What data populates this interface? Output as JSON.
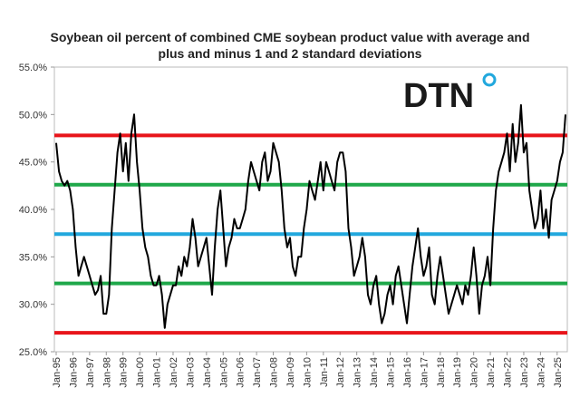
{
  "chart_data": {
    "type": "line",
    "title": "Soybean oil percent of combined CME soybean product value with average and plus and minus 1 and 2 standard deviations",
    "logo": "DTN",
    "ylim": [
      25,
      55
    ],
    "yticks": [
      {
        "value": 25,
        "label": "25.0%"
      },
      {
        "value": 30,
        "label": "30.0%"
      },
      {
        "value": 35,
        "label": "35.0%"
      },
      {
        "value": 40,
        "label": "40.0%"
      },
      {
        "value": 45,
        "label": "45.0%"
      },
      {
        "value": 50,
        "label": "50.0%"
      },
      {
        "value": 55,
        "label": "55.0%"
      }
    ],
    "xlim": [
      "Jan-95",
      "Jul-25"
    ],
    "xticks": [
      "Jan-95",
      "Jan-96",
      "Jan-97",
      "Jan-98",
      "Jan-99",
      "Jan-00",
      "Jan-01",
      "Jan-02",
      "Jan-03",
      "Jan-04",
      "Jan-05",
      "Jan-06",
      "Jan-07",
      "Jan-08",
      "Jan-09",
      "Jan-10",
      "Jan-11",
      "Jan-12",
      "Jan-13",
      "Jan-14",
      "Jan-15",
      "Jan-16",
      "Jan-17",
      "Jan-18",
      "Jan-19",
      "Jan-20",
      "Jan-21",
      "Jan-22",
      "Jan-23",
      "Jan-24",
      "Jan-25"
    ],
    "reference_lines": [
      {
        "value": 47.8,
        "color": "#e8141a"
      },
      {
        "value": 42.6,
        "color": "#1fa84a"
      },
      {
        "value": 37.4,
        "color": "#22a8dd"
      },
      {
        "value": 32.2,
        "color": "#1fa84a"
      },
      {
        "value": 27.0,
        "color": "#e8141a"
      }
    ],
    "x": [
      "Jan-95",
      "Mar-95",
      "May-95",
      "Jul-95",
      "Sep-95",
      "Nov-95",
      "Jan-96",
      "Mar-96",
      "May-96",
      "Jul-96",
      "Sep-96",
      "Nov-96",
      "Jan-97",
      "Mar-97",
      "May-97",
      "Jul-97",
      "Sep-97",
      "Nov-97",
      "Jan-98",
      "Mar-98",
      "May-98",
      "Jul-98",
      "Sep-98",
      "Nov-98",
      "Jan-99",
      "Mar-99",
      "May-99",
      "Jul-99",
      "Sep-99",
      "Nov-99",
      "Jan-00",
      "Mar-00",
      "May-00",
      "Jul-00",
      "Sep-00",
      "Nov-00",
      "Jan-01",
      "Mar-01",
      "May-01",
      "Jul-01",
      "Sep-01",
      "Nov-01",
      "Jan-02",
      "Mar-02",
      "May-02",
      "Jul-02",
      "Sep-02",
      "Nov-02",
      "Jan-03",
      "Mar-03",
      "May-03",
      "Jul-03",
      "Sep-03",
      "Nov-03",
      "Jan-04",
      "Mar-04",
      "May-04",
      "Jul-04",
      "Sep-04",
      "Nov-04",
      "Jan-05",
      "Mar-05",
      "May-05",
      "Jul-05",
      "Sep-05",
      "Nov-05",
      "Jan-06",
      "Mar-06",
      "May-06",
      "Jul-06",
      "Sep-06",
      "Nov-06",
      "Jan-07",
      "Mar-07",
      "May-07",
      "Jul-07",
      "Sep-07",
      "Nov-07",
      "Jan-08",
      "Mar-08",
      "May-08",
      "Jul-08",
      "Sep-08",
      "Nov-08",
      "Jan-09",
      "Mar-09",
      "May-09",
      "Jul-09",
      "Sep-09",
      "Nov-09",
      "Jan-10",
      "Mar-10",
      "May-10",
      "Jul-10",
      "Sep-10",
      "Nov-10",
      "Jan-11",
      "Mar-11",
      "May-11",
      "Jul-11",
      "Sep-11",
      "Nov-11",
      "Jan-12",
      "Mar-12",
      "May-12",
      "Jul-12",
      "Sep-12",
      "Nov-12",
      "Jan-13",
      "Mar-13",
      "May-13",
      "Jul-13",
      "Sep-13",
      "Nov-13",
      "Jan-14",
      "Mar-14",
      "May-14",
      "Jul-14",
      "Sep-14",
      "Nov-14",
      "Jan-15",
      "Mar-15",
      "May-15",
      "Jul-15",
      "Sep-15",
      "Nov-15",
      "Jan-16",
      "Mar-16",
      "May-16",
      "Jul-16",
      "Sep-16",
      "Nov-16",
      "Jan-17",
      "Mar-17",
      "May-17",
      "Jul-17",
      "Sep-17",
      "Nov-17",
      "Jan-18",
      "Mar-18",
      "May-18",
      "Jul-18",
      "Sep-18",
      "Nov-18",
      "Jan-19",
      "Mar-19",
      "May-19",
      "Jul-19",
      "Sep-19",
      "Nov-19",
      "Jan-20",
      "Mar-20",
      "May-20",
      "Jul-20",
      "Sep-20",
      "Nov-20",
      "Jan-21",
      "Mar-21",
      "May-21",
      "Jul-21",
      "Sep-21",
      "Nov-21",
      "Jan-22",
      "Mar-22",
      "May-22",
      "Jul-22",
      "Sep-22",
      "Nov-22",
      "Jan-23",
      "Mar-23",
      "May-23",
      "Jul-23",
      "Sep-23",
      "Nov-23",
      "Jan-24",
      "Mar-24",
      "May-24",
      "Jul-24",
      "Sep-24",
      "Nov-24",
      "Jan-25",
      "Mar-25",
      "May-25",
      "Jul-25"
    ],
    "series": [
      {
        "color": "#000000",
        "values": [
          47,
          44,
          43,
          42.5,
          43,
          42,
          40,
          36,
          33,
          34,
          35,
          34,
          33,
          32,
          31,
          31.5,
          33,
          29,
          29,
          31,
          38,
          42,
          46,
          48,
          44,
          47,
          43,
          48,
          50,
          45,
          42,
          38,
          36,
          35,
          33,
          32,
          32,
          33,
          31,
          27.5,
          30,
          31,
          32,
          32,
          34,
          33,
          35,
          34,
          36,
          39,
          37,
          34,
          35,
          36,
          37,
          34,
          31,
          36,
          40,
          42,
          38,
          34,
          36,
          37,
          39,
          38,
          38,
          39,
          40,
          43,
          45,
          44,
          43,
          42,
          45,
          46,
          43,
          44,
          47,
          46,
          45,
          42,
          38,
          36,
          37,
          34,
          33,
          35,
          35,
          38,
          40,
          43,
          42,
          41,
          43,
          45,
          42,
          45,
          44,
          43,
          42,
          45,
          46,
          46,
          44,
          38,
          36,
          33,
          34,
          35,
          37,
          35,
          31,
          30,
          32,
          33,
          30,
          28,
          29,
          31,
          32,
          30,
          33,
          34,
          32,
          30,
          28,
          31,
          34,
          36,
          38,
          35,
          33,
          34,
          36,
          31,
          30,
          33,
          35,
          33,
          31,
          29,
          30,
          31,
          32,
          31,
          30,
          32,
          31,
          33,
          36,
          33,
          29,
          32,
          33,
          35,
          32,
          38,
          42,
          44,
          45,
          46,
          48,
          44,
          49,
          45,
          47,
          51,
          46,
          47,
          42,
          40,
          38,
          39,
          42,
          38,
          40,
          37,
          41,
          42,
          43,
          45,
          46,
          50
        ]
      }
    ]
  }
}
